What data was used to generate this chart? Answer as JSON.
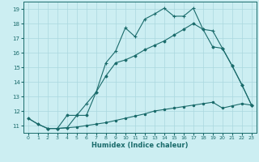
{
  "xlabel": "Humidex (Indice chaleur)",
  "bg_color": "#cceef2",
  "grid_color": "#aad8de",
  "line_color": "#1a6b6b",
  "xlim": [
    -0.5,
    23.5
  ],
  "ylim": [
    10.5,
    19.5
  ],
  "xticks": [
    0,
    1,
    2,
    3,
    4,
    5,
    6,
    7,
    8,
    9,
    10,
    11,
    12,
    13,
    14,
    15,
    16,
    17,
    18,
    19,
    20,
    21,
    22,
    23
  ],
  "yticks": [
    11,
    12,
    13,
    14,
    15,
    16,
    17,
    18,
    19
  ],
  "curve_bot_x": [
    0,
    1,
    2,
    3,
    4,
    5,
    6,
    7,
    8,
    9,
    10,
    11,
    12,
    13,
    14,
    15,
    16,
    17,
    18,
    19,
    20,
    21,
    22,
    23
  ],
  "curve_bot_y": [
    11.5,
    11.1,
    10.8,
    10.8,
    10.85,
    10.9,
    11.0,
    11.1,
    11.2,
    11.35,
    11.5,
    11.65,
    11.8,
    12.0,
    12.1,
    12.2,
    12.3,
    12.4,
    12.5,
    12.6,
    12.2,
    12.35,
    12.5,
    12.4
  ],
  "curve_top_x": [
    0,
    1,
    2,
    3,
    4,
    5,
    6,
    7,
    8,
    9,
    10,
    11,
    12,
    13,
    14,
    15,
    16,
    17,
    18,
    19,
    20,
    21,
    22,
    23
  ],
  "curve_top_y": [
    11.5,
    11.1,
    10.8,
    10.8,
    10.85,
    11.7,
    12.5,
    13.3,
    15.3,
    16.1,
    17.7,
    17.1,
    18.3,
    18.65,
    19.05,
    18.5,
    18.5,
    19.05,
    17.6,
    17.5,
    16.3,
    15.1,
    13.8,
    12.4
  ],
  "curve_mid_x": [
    2,
    3,
    4,
    5,
    6,
    7,
    8,
    9,
    10,
    11,
    12,
    13,
    14,
    15,
    16,
    17,
    18,
    19,
    20,
    21,
    22,
    23
  ],
  "curve_mid_y": [
    10.8,
    10.8,
    11.7,
    11.7,
    11.7,
    13.3,
    14.4,
    15.3,
    15.5,
    15.8,
    16.2,
    16.5,
    16.8,
    17.2,
    17.6,
    18.0,
    17.6,
    16.4,
    16.3,
    15.1,
    13.8,
    12.4
  ]
}
